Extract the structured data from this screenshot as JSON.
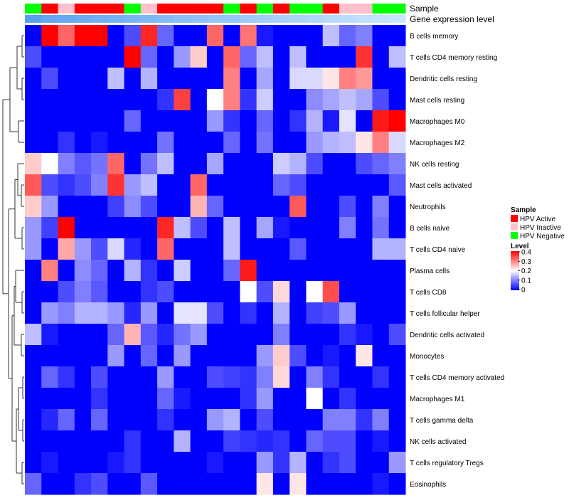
{
  "chart_data": {
    "type": "heatmap",
    "title": "",
    "annotation_labels": [
      "Sample",
      "Gene expression level"
    ],
    "row_labels": [
      "B cells memory",
      "T cells CD4 memory resting",
      "Dendritic cells resting",
      "Mast cells resting",
      "Macrophages M0",
      "Macrophages M2",
      "NK cells resting",
      "Mast cells activated",
      "Neutrophils",
      "B cells naive",
      "T cells CD4 naive",
      "Plasma cells",
      "T cells CD8",
      "T cells follicular helper",
      "Dendritic cells activated",
      "Monocytes",
      "T cells CD4 memory activated",
      "Macrophages M1",
      "T cells gamma delta",
      "NK cells activated",
      "T cells regulatory  Tregs",
      "Eosinophils"
    ],
    "sample_groups": [
      "HPV Negative",
      "HPV Active",
      "HPV Inactive",
      "HPV Active",
      "HPV Active",
      "HPV Active",
      "HPV Negative",
      "HPV Inactive",
      "HPV Active",
      "HPV Active",
      "HPV Active",
      "HPV Active",
      "HPV Negative",
      "HPV Active",
      "HPV Negative",
      "HPV Active",
      "HPV Negative",
      "HPV Negative",
      "HPV Active",
      "HPV Inactive",
      "HPV Inactive",
      "HPV Negative",
      "HPV Negative"
    ],
    "expression_levels": [
      0.95,
      0.9,
      0.88,
      0.85,
      0.82,
      0.8,
      0.77,
      0.74,
      0.71,
      0.68,
      0.65,
      0.62,
      0.6,
      0.57,
      0.54,
      0.51,
      0.48,
      0.46,
      0.43,
      0.4,
      0.37,
      0.35,
      0.32
    ],
    "matrix": [
      [
        0.0,
        0.4,
        0.32,
        0.4,
        0.4,
        0.0,
        0.06,
        0.37,
        0.08,
        0.0,
        0.0,
        0.32,
        0.0,
        0.31,
        0.02,
        0.0,
        0.0,
        0.0,
        0.15,
        0.08,
        0.1,
        0.0,
        0.0
      ],
      [
        0.06,
        0.0,
        0.0,
        0.0,
        0.0,
        0.0,
        0.4,
        0.08,
        0.0,
        0.12,
        0.24,
        0.0,
        0.32,
        0.08,
        0.15,
        0.0,
        0.15,
        0.0,
        0.0,
        0.0,
        0.36,
        0.0,
        0.15
      ],
      [
        0.0,
        0.06,
        0.0,
        0.0,
        0.0,
        0.15,
        0.0,
        0.14,
        0.0,
        0.0,
        0.0,
        0.0,
        0.3,
        0.0,
        0.13,
        0.0,
        0.17,
        0.17,
        0.22,
        0.3,
        0.28,
        0.0,
        0.0
      ],
      [
        0.0,
        0.0,
        0.0,
        0.0,
        0.0,
        0.0,
        0.0,
        0.0,
        0.04,
        0.35,
        0.0,
        0.2,
        0.3,
        0.04,
        0.16,
        0.0,
        0.0,
        0.11,
        0.13,
        0.15,
        0.13,
        0.06,
        0.0
      ],
      [
        0.0,
        0.0,
        0.0,
        0.0,
        0.0,
        0.0,
        0.08,
        0.0,
        0.0,
        0.0,
        0.0,
        0.12,
        0.04,
        0.0,
        0.08,
        0.0,
        0.04,
        0.14,
        0.02,
        0.18,
        0.0,
        0.38,
        0.4
      ],
      [
        0.0,
        0.0,
        0.04,
        0.0,
        0.02,
        0.0,
        0.0,
        0.0,
        0.09,
        0.0,
        0.0,
        0.0,
        0.08,
        0.0,
        0.09,
        0.0,
        0.0,
        0.12,
        0.14,
        0.15,
        0.22,
        0.3,
        0.17
      ],
      [
        0.24,
        0.2,
        0.1,
        0.07,
        0.09,
        0.32,
        0.0,
        0.09,
        0.15,
        0.0,
        0.0,
        0.13,
        0.0,
        0.0,
        0.0,
        0.16,
        0.14,
        0.06,
        0.0,
        0.0,
        0.06,
        0.08,
        0.1
      ],
      [
        0.33,
        0.06,
        0.04,
        0.06,
        0.1,
        0.36,
        0.12,
        0.15,
        0.0,
        0.0,
        0.32,
        0.0,
        0.0,
        0.0,
        0.0,
        0.08,
        0.06,
        0.0,
        0.0,
        0.0,
        0.0,
        0.0,
        0.07
      ],
      [
        0.24,
        0.12,
        0.0,
        0.0,
        0.0,
        0.05,
        0.11,
        0.06,
        0.0,
        0.0,
        0.26,
        0.08,
        0.0,
        0.0,
        0.0,
        0.0,
        0.33,
        0.0,
        0.0,
        0.06,
        0.0,
        0.1,
        0.0
      ],
      [
        0.12,
        0.05,
        0.4,
        0.0,
        0.0,
        0.0,
        0.0,
        0.0,
        0.37,
        0.15,
        0.06,
        0.0,
        0.15,
        0.0,
        0.13,
        0.02,
        0.0,
        0.0,
        0.0,
        0.1,
        0.0,
        0.09,
        0.0
      ],
      [
        0.12,
        0.0,
        0.27,
        0.12,
        0.06,
        0.17,
        0.03,
        0.0,
        0.32,
        0.0,
        0.0,
        0.0,
        0.15,
        0.0,
        0.0,
        0.0,
        0.07,
        0.0,
        0.0,
        0.0,
        0.0,
        0.14,
        0.14
      ],
      [
        0.0,
        0.3,
        0.0,
        0.11,
        0.08,
        0.0,
        0.14,
        0.04,
        0.0,
        0.16,
        0.0,
        0.0,
        0.08,
        0.38,
        0.0,
        0.0,
        0.0,
        0.0,
        0.0,
        0.0,
        0.0,
        0.0,
        0.0
      ],
      [
        0.0,
        0.0,
        0.06,
        0.1,
        0.07,
        0.0,
        0.0,
        0.04,
        0.06,
        0.0,
        0.0,
        0.0,
        0.0,
        0.2,
        0.06,
        0.23,
        0.0,
        0.2,
        0.34,
        0.0,
        0.0,
        0.0,
        0.0
      ],
      [
        0.0,
        0.12,
        0.1,
        0.14,
        0.14,
        0.12,
        0.03,
        0.12,
        0.0,
        0.18,
        0.18,
        0.06,
        0.0,
        0.04,
        0.0,
        0.14,
        0.0,
        0.05,
        0.06,
        0.12,
        0.0,
        0.0,
        0.0
      ],
      [
        0.15,
        0.02,
        0.0,
        0.0,
        0.0,
        0.08,
        0.26,
        0.07,
        0.03,
        0.09,
        0.12,
        0.0,
        0.0,
        0.0,
        0.0,
        0.1,
        0.0,
        0.0,
        0.0,
        0.04,
        0.02,
        0.0,
        0.06
      ],
      [
        0.0,
        0.0,
        0.0,
        0.0,
        0.0,
        0.12,
        0.0,
        0.08,
        0.0,
        0.12,
        0.0,
        0.0,
        0.0,
        0.0,
        0.12,
        0.24,
        0.06,
        0.0,
        0.02,
        0.0,
        0.22,
        0.0,
        0.0
      ],
      [
        0.0,
        0.08,
        0.04,
        0.0,
        0.06,
        0.0,
        0.0,
        0.0,
        0.12,
        0.0,
        0.0,
        0.06,
        0.05,
        0.04,
        0.1,
        0.23,
        0.0,
        0.1,
        0.04,
        0.0,
        0.0,
        0.04,
        0.0
      ],
      [
        0.0,
        0.0,
        0.0,
        0.0,
        0.04,
        0.0,
        0.0,
        0.0,
        0.08,
        0.02,
        0.0,
        0.0,
        0.0,
        0.04,
        0.12,
        0.0,
        0.0,
        0.2,
        0.0,
        0.04,
        0.0,
        0.0,
        0.0
      ],
      [
        0.0,
        0.03,
        0.08,
        0.0,
        0.08,
        0.0,
        0.0,
        0.0,
        0.04,
        0.0,
        0.0,
        0.12,
        0.14,
        0.0,
        0.06,
        0.0,
        0.0,
        0.0,
        0.1,
        0.1,
        0.04,
        0.1,
        0.0
      ],
      [
        0.0,
        0.0,
        0.0,
        0.0,
        0.0,
        0.0,
        0.04,
        0.0,
        0.0,
        0.14,
        0.0,
        0.0,
        0.05,
        0.04,
        0.03,
        0.04,
        0.0,
        0.08,
        0.06,
        0.06,
        0.0,
        0.02,
        0.0
      ],
      [
        0.0,
        0.02,
        0.0,
        0.0,
        0.0,
        0.02,
        0.04,
        0.0,
        0.0,
        0.0,
        0.0,
        0.02,
        0.0,
        0.0,
        0.12,
        0.04,
        0.14,
        0.0,
        0.04,
        0.06,
        0.0,
        0.0,
        0.12
      ],
      [
        0.08,
        0.0,
        0.0,
        0.04,
        0.06,
        0.0,
        0.0,
        0.07,
        0.0,
        0.0,
        0.0,
        0.0,
        0.0,
        0.0,
        0.22,
        0.0,
        0.22,
        0.0,
        0.0,
        0.0,
        0.0,
        0.02,
        0.0
      ]
    ],
    "color_scale": {
      "min": 0,
      "max": 0.4,
      "low": "#0000ff",
      "mid": "#ffffff",
      "high": "#ff0000"
    },
    "legend": {
      "sample_title": "Sample",
      "sample_entries": [
        {
          "label": "HPV Active",
          "color": "#ff0000"
        },
        {
          "label": "HPV Inactive",
          "color": "#ffc0cb"
        },
        {
          "label": "HPV Negative",
          "color": "#00ff00"
        }
      ],
      "level_title": "Level",
      "level_ticks": [
        "0.4",
        "0.3",
        "0.2",
        "0.1",
        "0"
      ]
    },
    "expression_color_range": {
      "high": "#5aa0f0",
      "low": "#c8e6ff"
    },
    "dendrogram": "rows",
    "legend_position": "right"
  }
}
